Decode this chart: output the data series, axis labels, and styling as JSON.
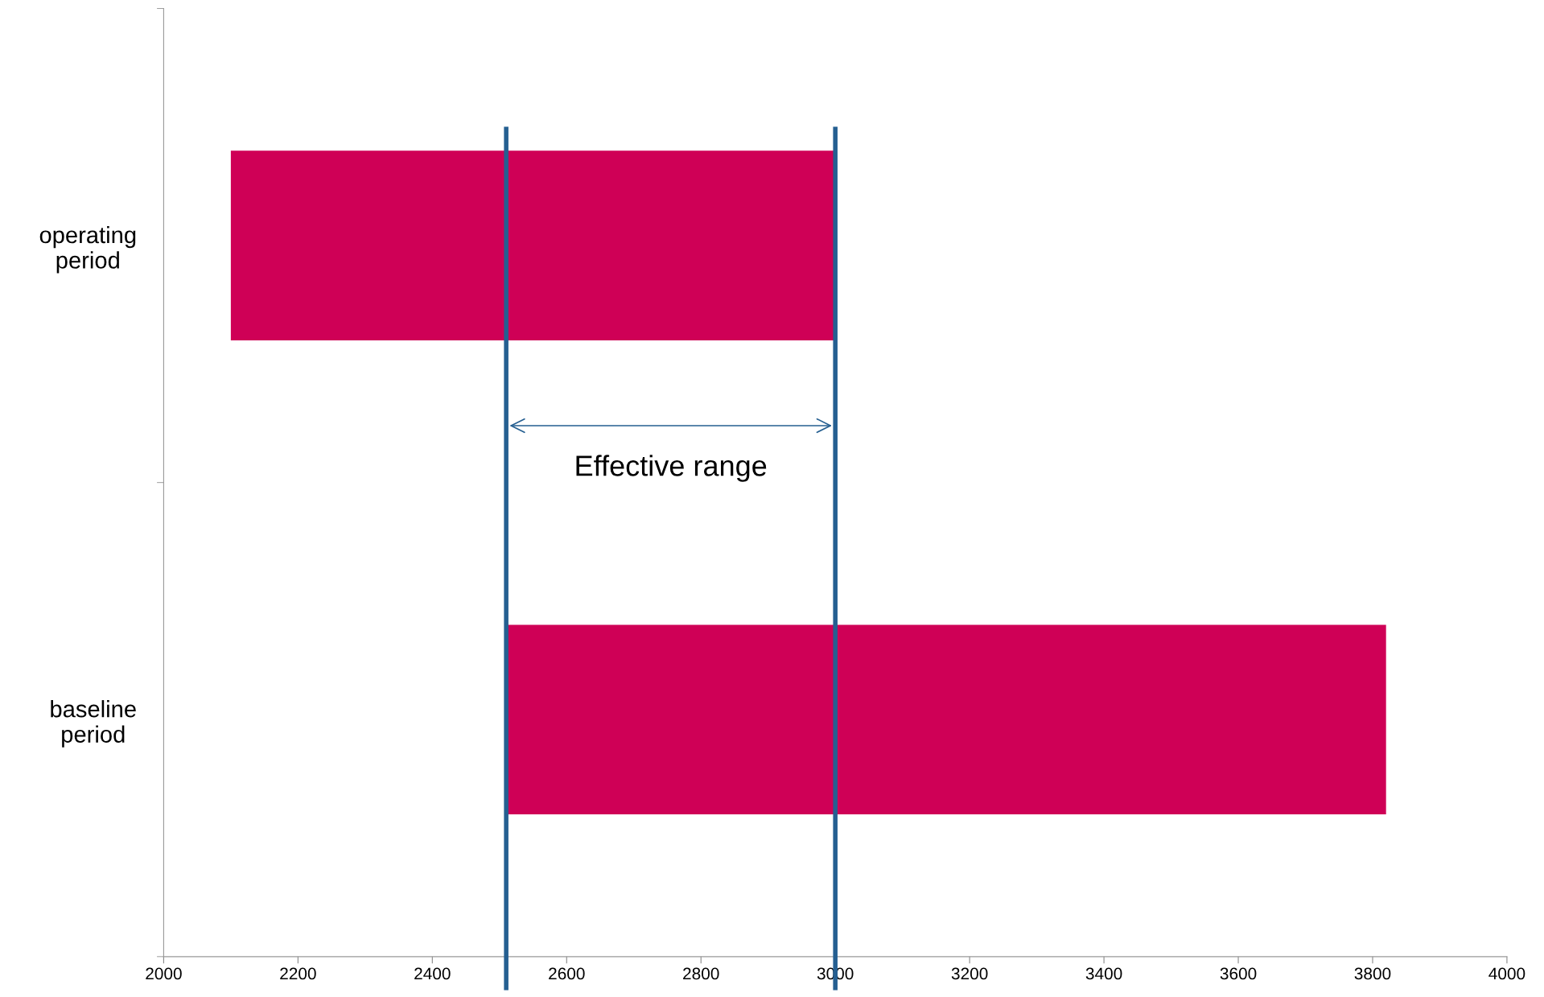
{
  "chart_data": {
    "type": "bar",
    "orientation": "horizontal",
    "categories": [
      "operating\nperiod",
      "baseline\nperiod"
    ],
    "values": [
      900,
      1310
    ],
    "base": [
      2100,
      2510
    ],
    "color": "#cf0056",
    "xlim": [
      2000,
      4000
    ],
    "xticks": [
      2000,
      2200,
      2400,
      2600,
      2800,
      3000,
      3200,
      3400,
      3600,
      3800,
      4000
    ],
    "grid": false,
    "ref_lines": [
      {
        "axis": "x",
        "value": 2510,
        "color": "#255f91"
      },
      {
        "axis": "x",
        "value": 3000,
        "color": "#255f91"
      }
    ],
    "annotations": [
      "Effective range"
    ]
  }
}
